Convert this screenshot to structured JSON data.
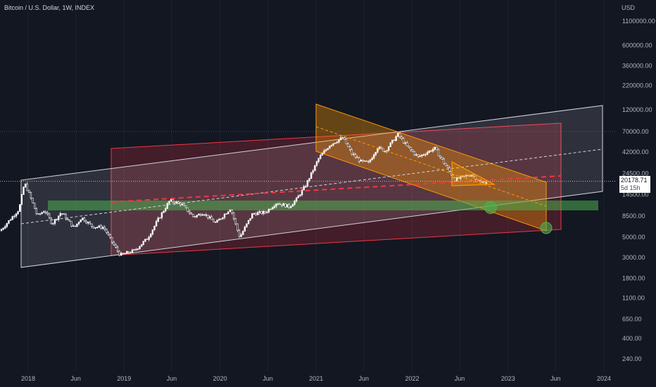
{
  "header": {
    "title": "Bitcoin / U.S. Dollar, 1W, INDEX"
  },
  "axis": {
    "unit": "USD"
  },
  "price_tag": {
    "value": "20178.71",
    "countdown": "5d 15h"
  },
  "colors": {
    "background": "#131722",
    "up": "#ffffff",
    "down": "#ffffff",
    "white_channel": "#d1d4dc",
    "red_channel": "#f23645",
    "orange_channel": "#ff9800",
    "green_zone": "#4caf50"
  },
  "chart_data": {
    "type": "candlestick",
    "xlabels": [
      "2018",
      "Jun",
      "2019",
      "Jun",
      "2020",
      "Jun",
      "2021",
      "Jun",
      "2022",
      "Jun",
      "2023",
      "Jun",
      "2024"
    ],
    "ylabels": [
      "1100000.00",
      "600000.00",
      "360000.00",
      "220000.00",
      "120000.00",
      "70000.00",
      "42000.00",
      "24500.00",
      "14500.00",
      "8500.00",
      "5000.00",
      "3000.00",
      "1800.00",
      "1100.00",
      "650.00",
      "400.00",
      "240.00"
    ],
    "yscale": "log",
    "last_price": 20178.71,
    "series": [
      {
        "values": [
          [
            "2017-11-27",
            10000
          ],
          [
            "2017-12-18",
            19500
          ],
          [
            "2018-01-08",
            14000
          ],
          [
            "2018-02-05",
            8500
          ],
          [
            "2018-03-05",
            9800
          ],
          [
            "2018-04-02",
            7000
          ],
          [
            "2018-05-07",
            9300
          ],
          [
            "2018-06-25",
            6300
          ],
          [
            "2018-07-23",
            8200
          ],
          [
            "2018-09-03",
            6500
          ],
          [
            "2018-10-15",
            6400
          ],
          [
            "2018-11-19",
            4300
          ],
          [
            "2018-12-17",
            3200
          ],
          [
            "2019-02-11",
            3600
          ],
          [
            "2019-04-01",
            4900
          ],
          [
            "2019-05-13",
            8000
          ],
          [
            "2019-06-24",
            12500
          ],
          [
            "2019-08-05",
            11500
          ],
          [
            "2019-09-23",
            8300
          ],
          [
            "2019-10-28",
            9200
          ],
          [
            "2019-12-16",
            7100
          ],
          [
            "2020-02-10",
            10300
          ],
          [
            "2020-03-16",
            5000
          ],
          [
            "2020-05-04",
            9000
          ],
          [
            "2020-06-22",
            9300
          ],
          [
            "2020-08-03",
            11800
          ],
          [
            "2020-09-21",
            10700
          ],
          [
            "2020-10-19",
            13000
          ],
          [
            "2020-11-23",
            18500
          ],
          [
            "2020-12-21",
            27000
          ],
          [
            "2021-01-11",
            36000
          ],
          [
            "2021-02-22",
            50000
          ],
          [
            "2021-04-12",
            60000
          ],
          [
            "2021-05-17",
            40000
          ],
          [
            "2021-06-21",
            33000
          ],
          [
            "2021-07-19",
            32000
          ],
          [
            "2021-08-23",
            47000
          ],
          [
            "2021-09-20",
            43000
          ],
          [
            "2021-11-08",
            65000
          ],
          [
            "2021-12-13",
            48000
          ],
          [
            "2022-01-24",
            37000
          ],
          [
            "2022-03-28",
            46000
          ],
          [
            "2022-05-09",
            30000
          ],
          [
            "2022-06-13",
            21000
          ],
          [
            "2022-07-25",
            23000
          ],
          [
            "2022-08-15",
            24000
          ],
          [
            "2022-09-19",
            19500
          ],
          [
            "2022-10-17",
            20178.71
          ]
        ]
      }
    ],
    "annotations": [
      {
        "type": "channel",
        "color": "white"
      },
      {
        "type": "channel",
        "color": "red"
      },
      {
        "type": "channel",
        "color": "orange"
      },
      {
        "type": "triangle",
        "color": "orange"
      },
      {
        "type": "zone",
        "color": "green"
      },
      {
        "type": "circle",
        "color": "green"
      },
      {
        "type": "circle",
        "color": "green"
      }
    ]
  }
}
